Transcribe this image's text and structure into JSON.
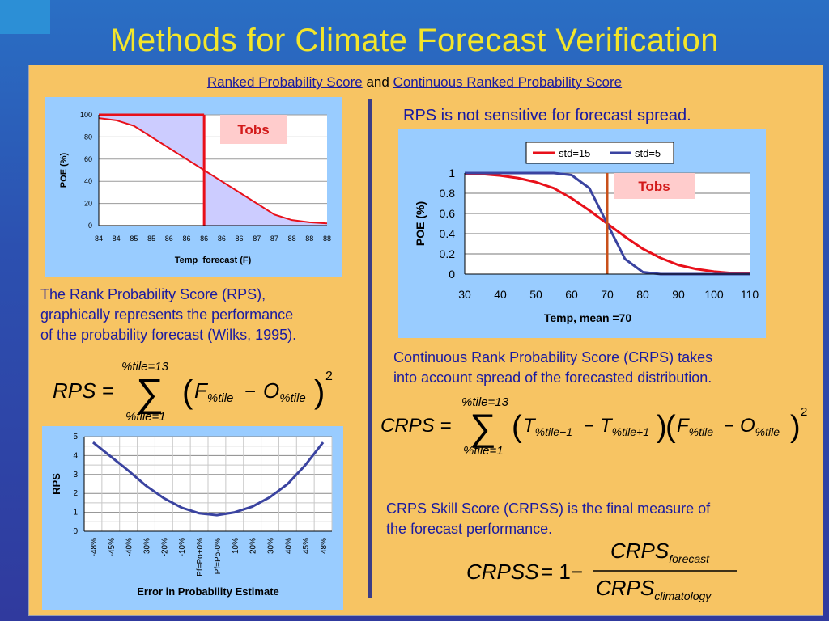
{
  "title": "Methods for Climate Forecast Verification",
  "subtitle": {
    "part1": "Ranked Probability Score",
    "connector": "and",
    "part2": "Continuous Ranked Probability Score"
  },
  "left_top_chart": {
    "tag": "Tobs",
    "ylabel": "POE (%)",
    "xlabel": "Temp_forecast (F)",
    "yticks": [
      "0",
      "20",
      "40",
      "60",
      "80",
      "100"
    ],
    "xticks": [
      "84",
      "84",
      "85",
      "85",
      "86",
      "86",
      "86",
      "86",
      "86",
      "87",
      "87",
      "88",
      "88",
      "88"
    ]
  },
  "rps_description": [
    "The Rank Probability Score (RPS),",
    "graphically represents the performance",
    "of the probability forecast (Wilks, 1995)."
  ],
  "rps_equation": {
    "lhs": "RPS =",
    "upper": "%tile=13",
    "lower": "%tile=1"
  },
  "bottom_chart": {
    "ylabel": "RPS",
    "xlabel": "Error in Probability Estimate",
    "yticks": [
      "0",
      "1",
      "2",
      "3",
      "4",
      "5"
    ],
    "xticks": [
      "-48%",
      "-45%",
      "-40%",
      "-30%",
      "-20%",
      "-10%",
      "Pf=Po+0%",
      "Pf=Po-0%",
      "10%",
      "20%",
      "30%",
      "40%",
      "45%",
      "48%"
    ]
  },
  "rps_note": "RPS is not sensitive for forecast spread.",
  "right_chart": {
    "tag": "Tobs",
    "ylabel": "POE (%)",
    "xlabel": "Temp, mean =70",
    "yticks": [
      "0",
      "0.2",
      "0.4",
      "0.6",
      "0.8",
      "1"
    ],
    "xticks": [
      "30",
      "40",
      "50",
      "60",
      "70",
      "80",
      "90",
      "100",
      "110"
    ],
    "legend": [
      "std=15",
      "std=5"
    ]
  },
  "crps_description": [
    "Continuous Rank Probability Score (CRPS) takes",
    "into account spread of the forecasted distribution."
  ],
  "crps_equation": {
    "lhs": "CRPS =",
    "upper": "%tile=13",
    "lower": "%tile=1"
  },
  "crpss_description": [
    "CRPS Skill Score (CRPSS) is the final measure of",
    "the forecast performance."
  ],
  "crpss_equation": {
    "lhs": "CRPSS",
    "eq": "= 1−",
    "num": "CRPS",
    "num_sub": "forecast",
    "den": "CRPS",
    "den_sub": "climatology"
  },
  "chart_data": [
    {
      "type": "line",
      "ylabel": "POE (%)",
      "xlabel": "Temp_forecast (F)",
      "ylim": [
        0,
        100
      ],
      "x_index": [
        0,
        1,
        2,
        3,
        4,
        5,
        6,
        7,
        8,
        9,
        10,
        11,
        12,
        13
      ],
      "series": [
        {
          "values": [
            97,
            95,
            90,
            80,
            70,
            60,
            50,
            40,
            30,
            20,
            10,
            5,
            3,
            2
          ]
        }
      ],
      "observed_index": 6,
      "colors": {
        "line": "#e8101a",
        "fill": "#ccccff"
      }
    },
    {
      "type": "line",
      "ylabel": "RPS",
      "xlabel": "Error in Probability Estimate",
      "ylim": [
        0,
        5
      ],
      "categories": [
        "-48%",
        "-45%",
        "-40%",
        "-30%",
        "-20%",
        "-10%",
        "Pf=Po+0%",
        "Pf=Po-0%",
        "10%",
        "20%",
        "30%",
        "40%",
        "45%",
        "48%"
      ],
      "series": [
        {
          "values": [
            4.7,
            3.95,
            3.2,
            2.4,
            1.75,
            1.25,
            0.95,
            0.85,
            1.0,
            1.3,
            1.8,
            2.5,
            3.5,
            4.7
          ]
        }
      ],
      "colors": {
        "line": "#3a43a0"
      }
    },
    {
      "type": "line",
      "ylabel": "POE (%)",
      "xlabel": "Temp, mean =70",
      "xlim": [
        30,
        110
      ],
      "ylim": [
        0,
        1
      ],
      "x": [
        30,
        35,
        40,
        45,
        50,
        55,
        60,
        65,
        70,
        75,
        80,
        85,
        90,
        95,
        100,
        105,
        110
      ],
      "series": [
        {
          "name": "std=15",
          "values": [
            0.996,
            0.99,
            0.975,
            0.95,
            0.91,
            0.85,
            0.75,
            0.63,
            0.5,
            0.37,
            0.25,
            0.16,
            0.09,
            0.05,
            0.025,
            0.01,
            0.004
          ]
        },
        {
          "name": "std=5",
          "values": [
            1,
            1,
            1,
            1,
            1,
            1,
            0.98,
            0.85,
            0.5,
            0.15,
            0.02,
            0,
            0,
            0,
            0,
            0,
            0
          ]
        }
      ],
      "observed_x": 70,
      "colors": {
        "std=15": "#e8101a",
        "std=5": "#3a43a0",
        "observed": "#c8501a"
      }
    }
  ]
}
